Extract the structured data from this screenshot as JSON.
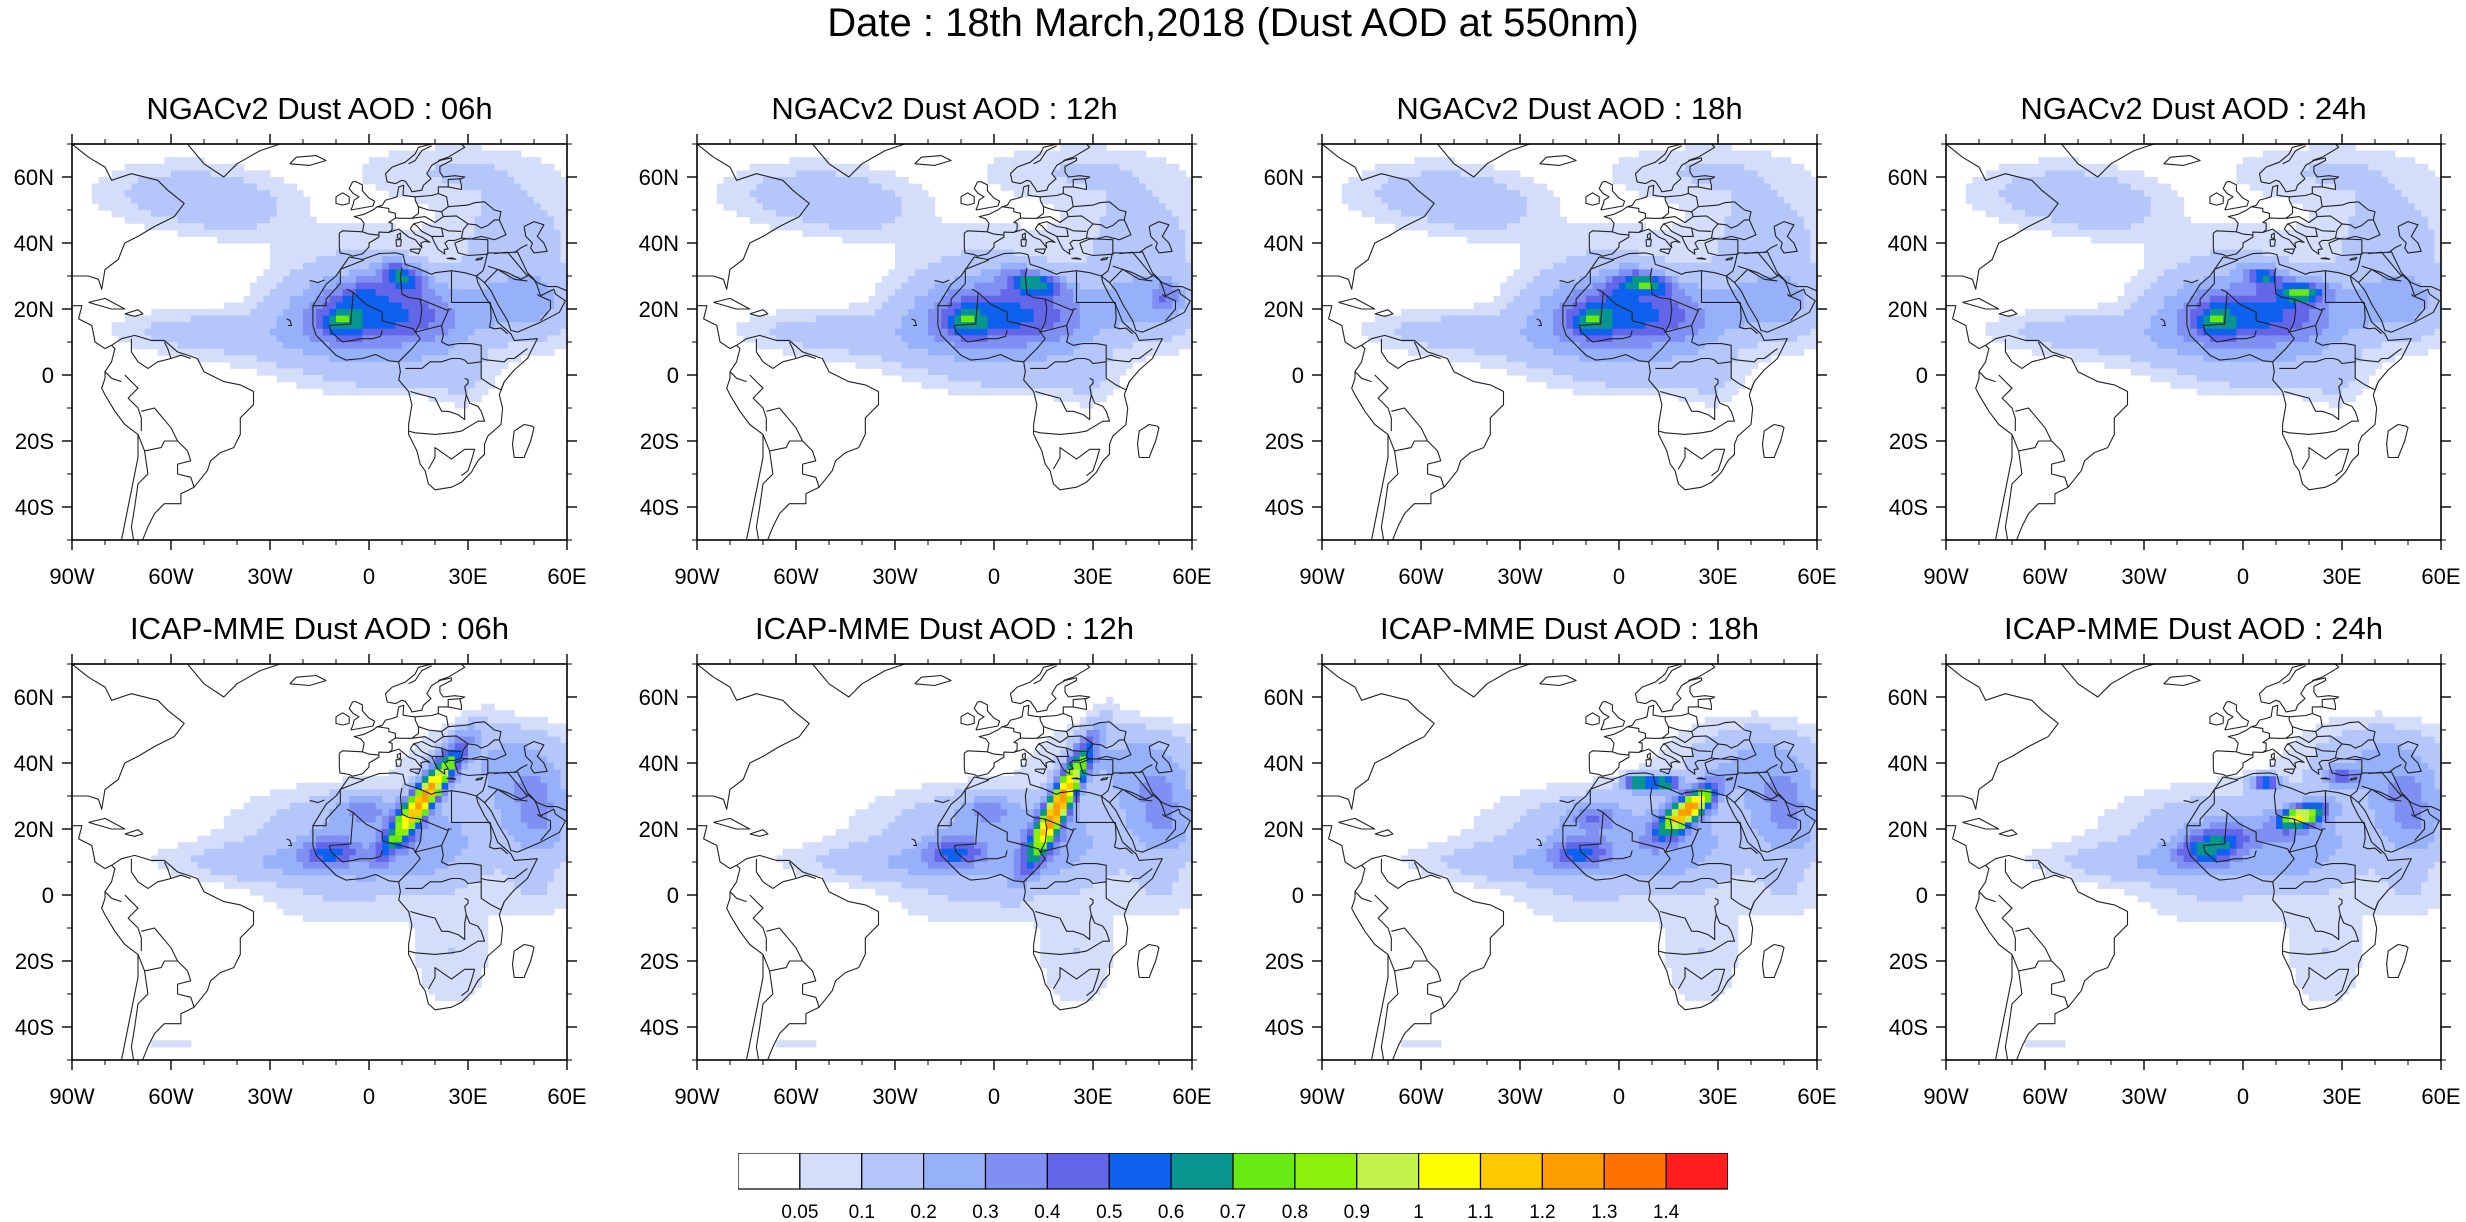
{
  "title": "Date : 18th March,2018 (Dust AOD at 550nm)",
  "panels": [
    {
      "row": 0,
      "col": 0,
      "title": "NGACv2 Dust AOD : 06h",
      "model": "ngac",
      "hour": "06h"
    },
    {
      "row": 0,
      "col": 1,
      "title": "NGACv2 Dust AOD : 12h",
      "model": "ngac",
      "hour": "12h"
    },
    {
      "row": 0,
      "col": 2,
      "title": "NGACv2 Dust AOD : 18h",
      "model": "ngac",
      "hour": "18h"
    },
    {
      "row": 0,
      "col": 3,
      "title": "NGACv2 Dust AOD : 24h",
      "model": "ngac",
      "hour": "24h"
    },
    {
      "row": 1,
      "col": 0,
      "title": "ICAP-MME Dust AOD : 06h",
      "model": "icap",
      "hour": "06h"
    },
    {
      "row": 1,
      "col": 1,
      "title": "ICAP-MME Dust AOD : 12h",
      "model": "icap",
      "hour": "12h"
    },
    {
      "row": 1,
      "col": 2,
      "title": "ICAP-MME Dust AOD : 18h",
      "model": "icap",
      "hour": "18h"
    },
    {
      "row": 1,
      "col": 3,
      "title": "ICAP-MME Dust AOD : 24h",
      "model": "icap",
      "hour": "24h"
    }
  ],
  "map_extent": {
    "lon": [
      -90,
      60
    ],
    "lat": [
      -50,
      70
    ]
  },
  "lon_ticks": [
    {
      "value": -90,
      "label": "90W"
    },
    {
      "value": -60,
      "label": "60W"
    },
    {
      "value": -30,
      "label": "30W"
    },
    {
      "value": 0,
      "label": "0"
    },
    {
      "value": 30,
      "label": "30E"
    },
    {
      "value": 60,
      "label": "60E"
    }
  ],
  "lat_ticks": [
    {
      "value": 60,
      "label": "60N"
    },
    {
      "value": 40,
      "label": "40N"
    },
    {
      "value": 20,
      "label": "20N"
    },
    {
      "value": 0,
      "label": "0"
    },
    {
      "value": -20,
      "label": "20S"
    },
    {
      "value": -40,
      "label": "40S"
    }
  ],
  "colorbar": {
    "labels": [
      "0.05",
      "0.1",
      "0.2",
      "0.3",
      "0.4",
      "0.5",
      "0.6",
      "0.7",
      "0.8",
      "0.9",
      "1",
      "1.1",
      "1.2",
      "1.3",
      "1.4"
    ],
    "colors": [
      "#ffffff",
      "#d4defa",
      "#b4c6fa",
      "#96b0fa",
      "#7f8ff2",
      "#6466ea",
      "#0d61ee",
      "#09958f",
      "#66ea12",
      "#8cf10a",
      "#c3f24a",
      "#ffff00",
      "#ffc800",
      "#ff9e00",
      "#ff7200",
      "#ff1e1e"
    ]
  },
  "style": {
    "land_outline": "#222222",
    "frame": "#000000"
  }
}
